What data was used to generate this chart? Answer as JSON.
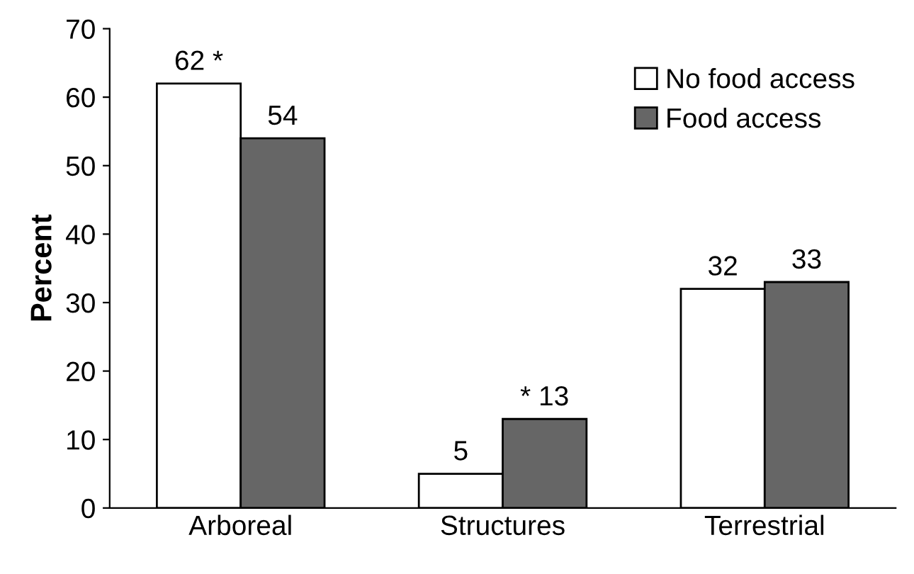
{
  "chart_data": {
    "type": "bar",
    "ylabel": "Percent",
    "categories": [
      "Arboreal",
      "Structures",
      "Terrestrial"
    ],
    "series": [
      {
        "name": "No food access",
        "color": "#ffffff",
        "values": [
          62,
          5,
          32
        ],
        "value_labels": [
          "62 *",
          "5",
          "32"
        ]
      },
      {
        "name": "Food access",
        "color": "#666666",
        "values": [
          54,
          13,
          33
        ],
        "value_labels": [
          "54",
          "* 13",
          "33"
        ]
      }
    ],
    "ylim": [
      0,
      70
    ],
    "yticks": [
      0,
      10,
      20,
      30,
      40,
      50,
      60,
      70
    ],
    "grid": false,
    "legend": "top right"
  }
}
